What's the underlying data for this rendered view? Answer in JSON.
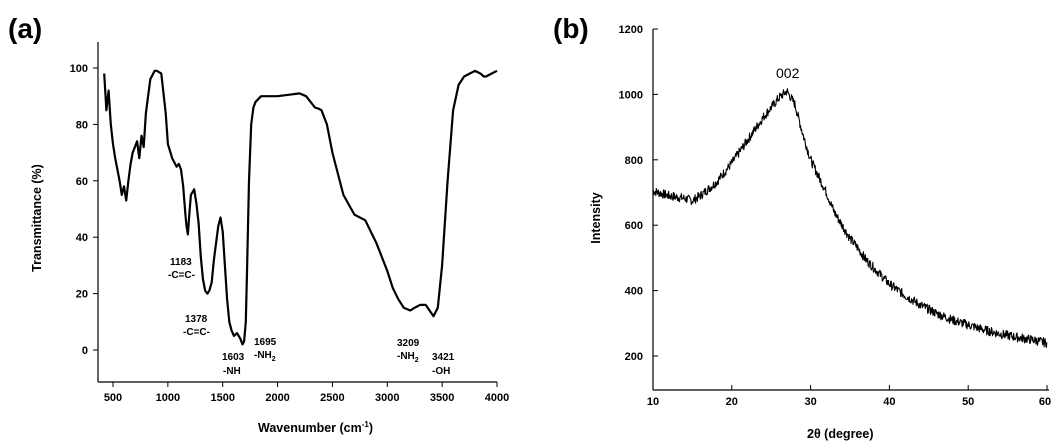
{
  "chart_data": [
    {
      "panel_label": "(a)",
      "type": "line",
      "xlabel": "Wavenumber (cm",
      "xlabel_sup": "-1",
      "xlabel_tail": ")",
      "ylabel": "Transmittance (%)",
      "xlim": [
        400,
        4000
      ],
      "ylim": [
        -8,
        110
      ],
      "xticks": [
        "500",
        "1000",
        "1500",
        "2000",
        "2500",
        "3000",
        "3500",
        "4000"
      ],
      "yticks": [
        "0",
        "20",
        "40",
        "60",
        "80",
        "100"
      ],
      "series": [
        {
          "x": [
            420,
            440,
            460,
            480,
            500,
            520,
            540,
            560,
            580,
            600,
            620,
            640,
            660,
            680,
            700,
            720,
            740,
            760,
            780,
            800,
            840,
            880,
            900,
            940,
            980,
            1000,
            1040,
            1080,
            1100,
            1120,
            1140,
            1160,
            1170,
            1183,
            1195,
            1210,
            1240,
            1260,
            1280,
            1300,
            1320,
            1340,
            1360,
            1378,
            1400,
            1420,
            1440,
            1460,
            1480,
            1500,
            1520,
            1540,
            1560,
            1580,
            1603,
            1630,
            1660,
            1680,
            1695,
            1710,
            1720,
            1740,
            1760,
            1780,
            1800,
            1850,
            1900,
            2000,
            2100,
            2200,
            2260,
            2300,
            2340,
            2380,
            2400,
            2450,
            2500,
            2600,
            2700,
            2800,
            2850,
            2900,
            2950,
            3000,
            3050,
            3100,
            3150,
            3209,
            3250,
            3300,
            3350,
            3421,
            3460,
            3500,
            3550,
            3600,
            3650,
            3700,
            3750,
            3800,
            3850,
            3880,
            3900,
            3950,
            4000
          ],
          "y": [
            98,
            85,
            92,
            80,
            73,
            68,
            64,
            60,
            55,
            58,
            53,
            60,
            66,
            70,
            72,
            74,
            68,
            76,
            72,
            84,
            96,
            99,
            99,
            98,
            84,
            73,
            68,
            65,
            66,
            64,
            58,
            48,
            44,
            41,
            48,
            55,
            57,
            52,
            45,
            33,
            25,
            21,
            20,
            21,
            24,
            32,
            38,
            44,
            47,
            42,
            30,
            18,
            10,
            7,
            5,
            6,
            4,
            2,
            3,
            10,
            26,
            60,
            80,
            86,
            88,
            90,
            90,
            90,
            90.5,
            91,
            90,
            88,
            86,
            85.5,
            85,
            80,
            70,
            55,
            48,
            46,
            42,
            38,
            33,
            28,
            22,
            18,
            15,
            14,
            15,
            16,
            16,
            12,
            15,
            30,
            60,
            85,
            94,
            97,
            98,
            99,
            98,
            97,
            97,
            98,
            99
          ]
        }
      ],
      "annotations": [
        {
          "text": "1183",
          "line2": "-C=C-"
        },
        {
          "text": "1378",
          "line2": "-C=C-"
        },
        {
          "text": "1603",
          "line2": "-NH"
        },
        {
          "text": "1695",
          "line2": "-NH",
          "line2_sub": "2"
        },
        {
          "text": "3209",
          "line2": "-NH",
          "line2_sub": "2"
        },
        {
          "text": "3421",
          "line2": "-OH"
        }
      ]
    },
    {
      "panel_label": "(b)",
      "type": "line",
      "xlabel": "2θ (degree)",
      "ylabel": "Intensity",
      "xlim": [
        10,
        60
      ],
      "ylim": [
        130,
        1200
      ],
      "xticks": [
        "10",
        "20",
        "30",
        "40",
        "50",
        "60"
      ],
      "yticks": [
        "200",
        "400",
        "600",
        "800",
        "1000",
        "1200"
      ],
      "series": [
        {
          "x": [
            10,
            12,
            14,
            15,
            16,
            18,
            20,
            22,
            24,
            26,
            27,
            28,
            29,
            30,
            31,
            32,
            33,
            34,
            35,
            36,
            37,
            38,
            40,
            42,
            44,
            46,
            48,
            50,
            52,
            54,
            56,
            58,
            60
          ],
          "y": [
            705,
            690,
            682,
            675,
            690,
            730,
            790,
            860,
            930,
            990,
            1010,
            970,
            880,
            800,
            750,
            700,
            640,
            600,
            560,
            530,
            495,
            470,
            420,
            385,
            355,
            330,
            310,
            295,
            280,
            268,
            258,
            250,
            240
          ]
        }
      ],
      "annotations": [
        {
          "text": "002"
        }
      ]
    }
  ]
}
